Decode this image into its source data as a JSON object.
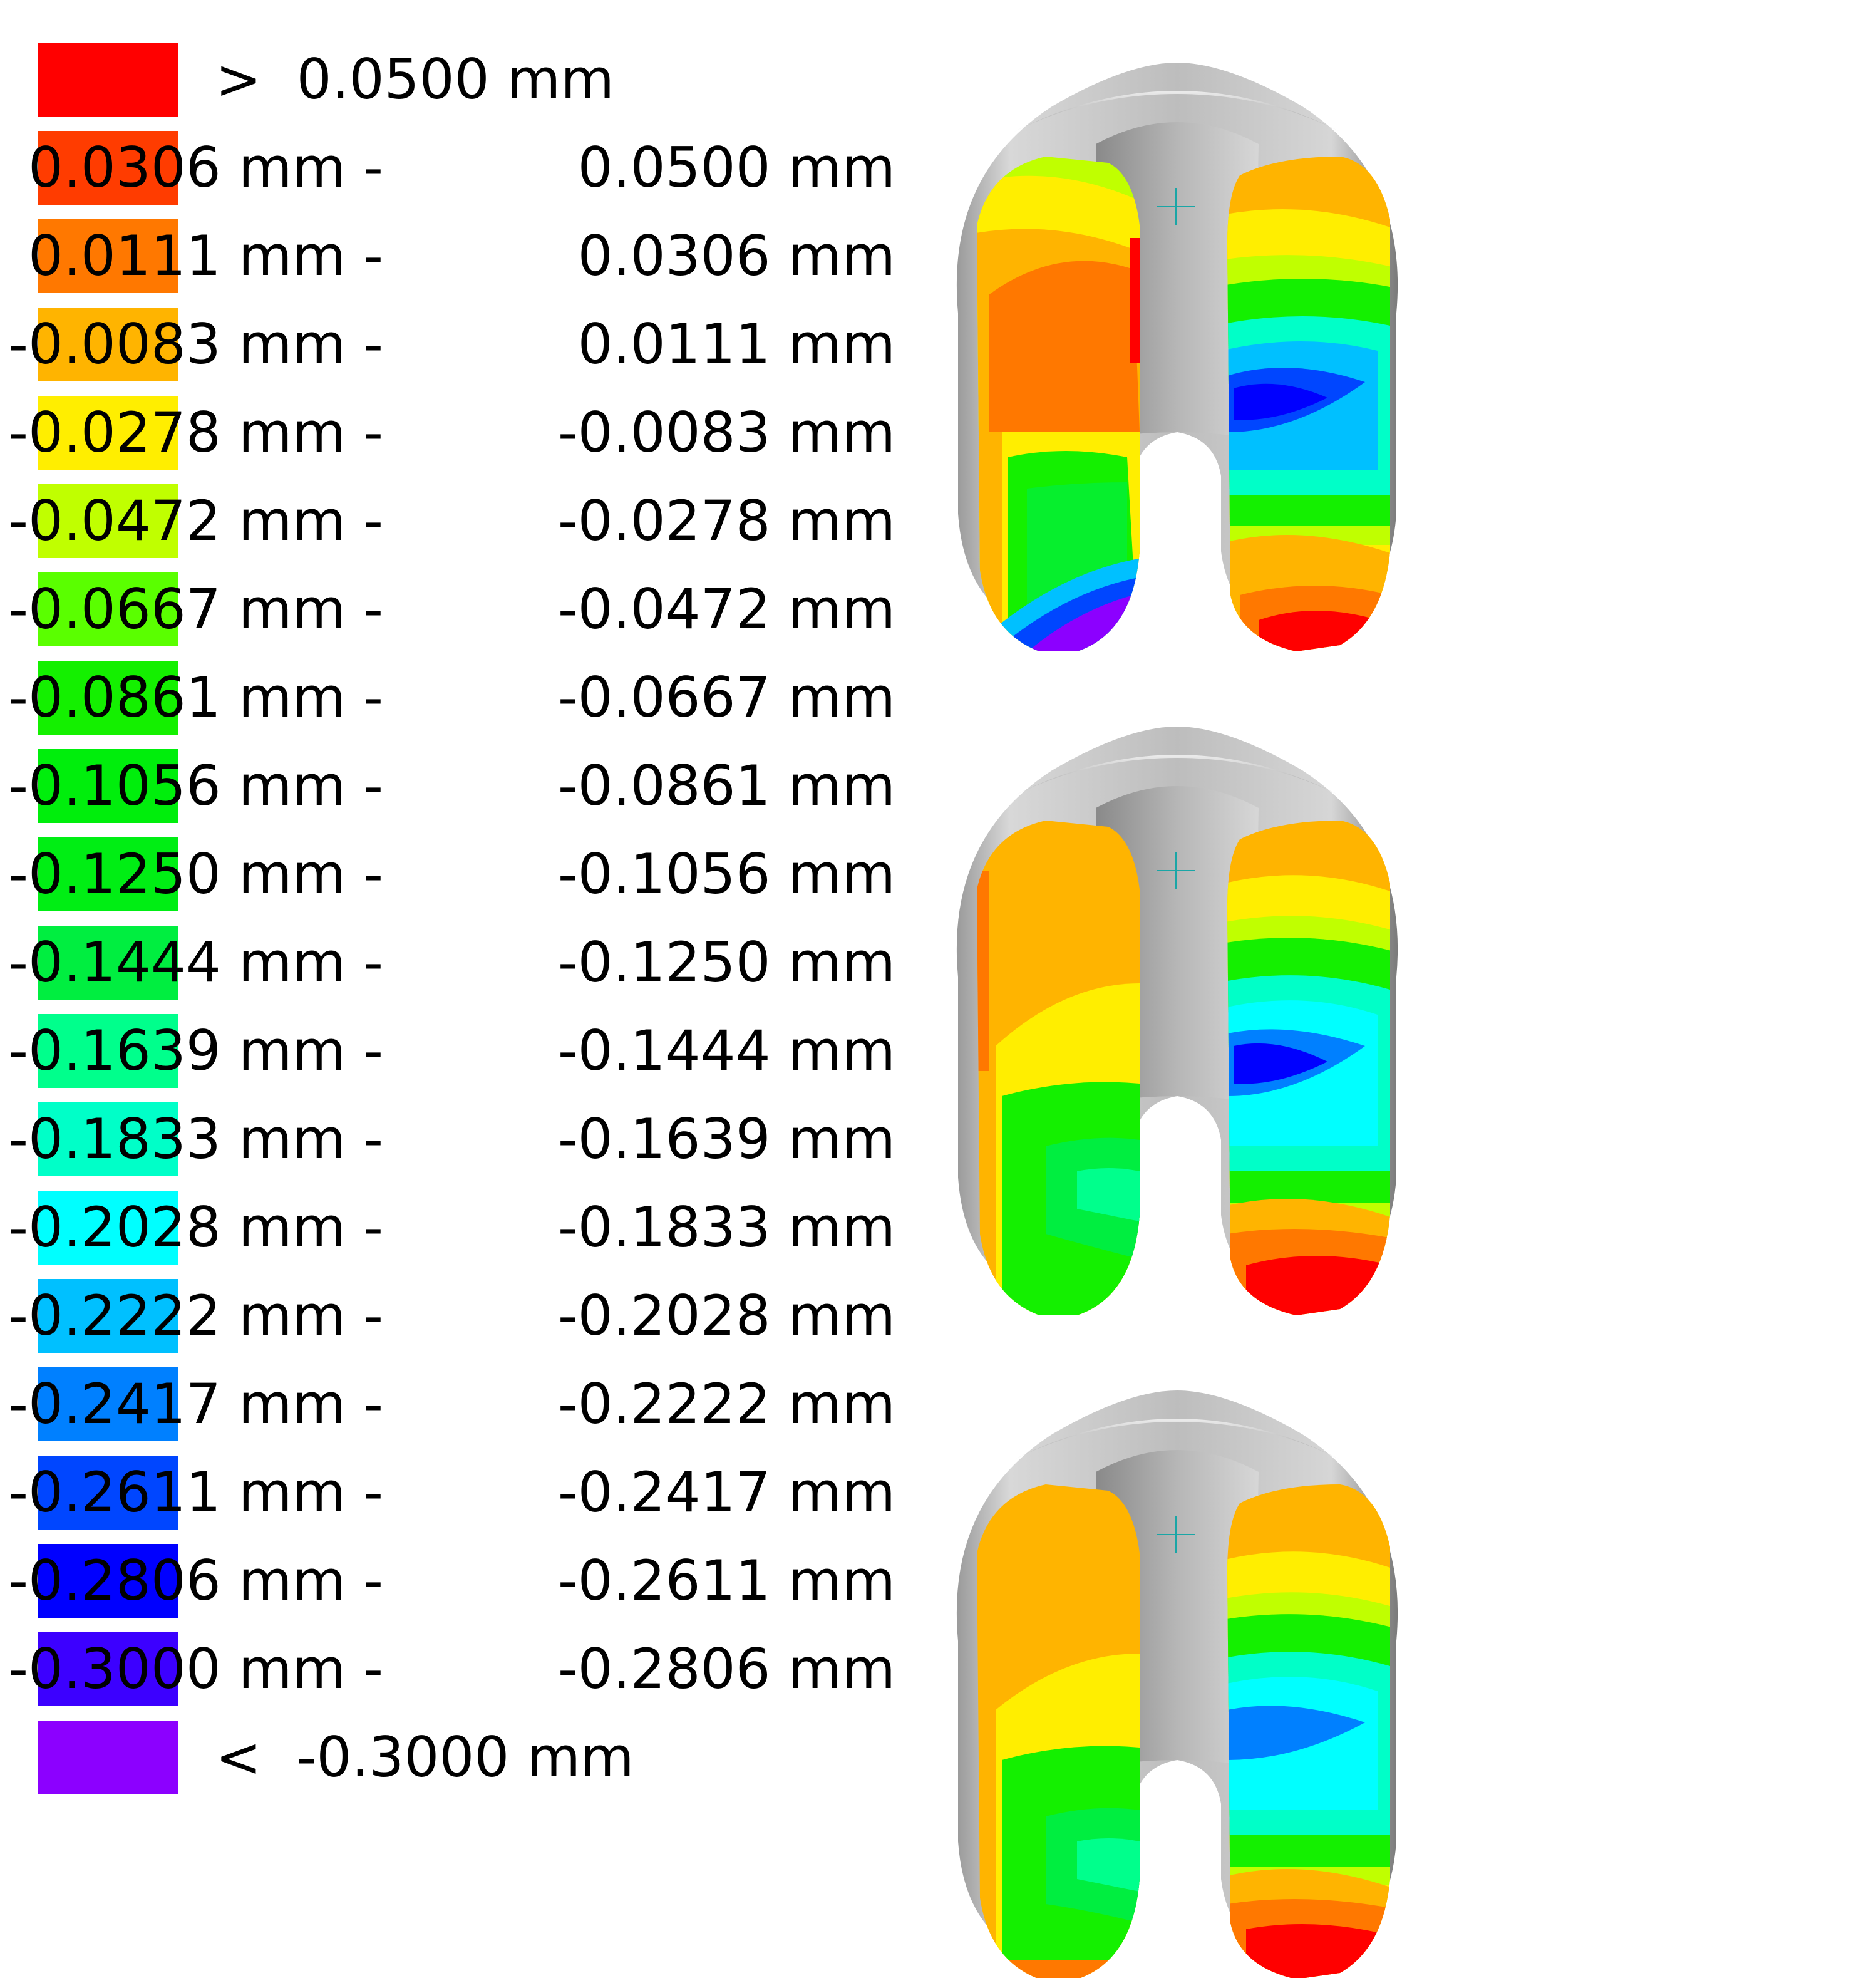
{
  "legend": {
    "items": [
      {
        "color": "#ff0000",
        "label": ">  0.0500 mm"
      },
      {
        "color": "#ff3c00",
        "lo": "0.0306 mm - ",
        "hi": "0.0500 mm"
      },
      {
        "color": "#ff7800",
        "lo": "0.0111 mm - ",
        "hi": "0.0306 mm"
      },
      {
        "color": "#ffb400",
        "lo": "-0.0083 mm - ",
        "hi": "0.0111 mm"
      },
      {
        "color": "#ffee00",
        "lo": "-0.0278 mm - ",
        "hi": "-0.0083 mm"
      },
      {
        "color": "#c0ff00",
        "lo": "-0.0472 mm - ",
        "hi": "-0.0278 mm"
      },
      {
        "color": "#5aff00",
        "lo": "-0.0667 mm - ",
        "hi": "-0.0472 mm"
      },
      {
        "color": "#14f000",
        "lo": "-0.0861 mm - ",
        "hi": "-0.0667 mm"
      },
      {
        "color": "#00ee0c",
        "lo": "-0.1056 mm - ",
        "hi": "-0.0861 mm"
      },
      {
        "color": "#00ee14",
        "lo": "-0.1250 mm - ",
        "hi": "-0.1056 mm"
      },
      {
        "color": "#00ee40",
        "lo": "-0.1444 mm - ",
        "hi": "-0.1250 mm"
      },
      {
        "color": "#00ff8c",
        "lo": "-0.1639 mm - ",
        "hi": "-0.1444 mm"
      },
      {
        "color": "#00ffc8",
        "lo": "-0.1833 mm - ",
        "hi": "-0.1639 mm"
      },
      {
        "color": "#00ffff",
        "lo": "-0.2028 mm - ",
        "hi": "-0.1833 mm"
      },
      {
        "color": "#00c0ff",
        "lo": "-0.2222 mm - ",
        "hi": "-0.2028 mm"
      },
      {
        "color": "#0080ff",
        "lo": "-0.2417 mm - ",
        "hi": "-0.2222 mm"
      },
      {
        "color": "#0046ff",
        "lo": "-0.2611 mm - ",
        "hi": "-0.2417 mm"
      },
      {
        "color": "#0000ff",
        "lo": "-0.2806 mm - ",
        "hi": "-0.2611 mm"
      },
      {
        "color": "#3c00ff",
        "lo": "-0.3000 mm - ",
        "hi": "-0.2806 mm"
      },
      {
        "color": "#8c00ff",
        "label": "<  -0.3000 mm"
      }
    ]
  },
  "renders": [
    {
      "name": "knee-map-top"
    },
    {
      "name": "knee-map-middle"
    },
    {
      "name": "knee-map-bottom"
    }
  ]
}
